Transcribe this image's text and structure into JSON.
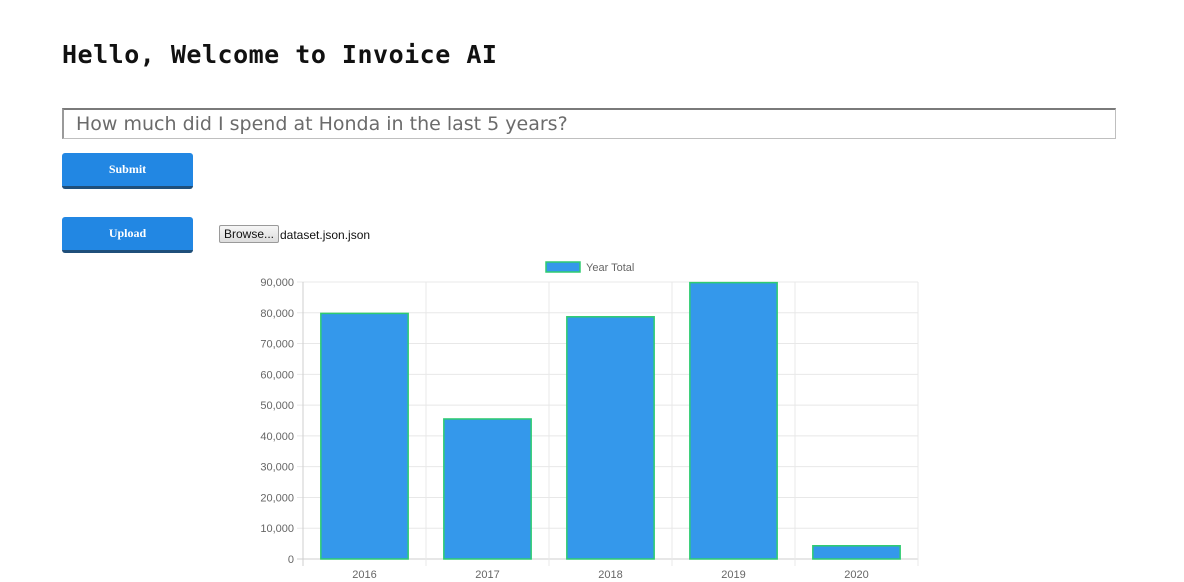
{
  "header": {
    "title": "Hello, Welcome to Invoice AI"
  },
  "query": {
    "placeholder": "How much did I spend at Honda in the last 5 years?",
    "value": ""
  },
  "actions": {
    "submit_label": "Submit",
    "upload_label": "Upload"
  },
  "file": {
    "browse_label": "Browse...",
    "selected_file": "dataset.json.json"
  },
  "colors": {
    "button": "#2287e3",
    "bar_fill": "#3498eb",
    "bar_border": "#2ecc71"
  },
  "chart_data": {
    "type": "bar",
    "categories": [
      "2016",
      "2017",
      "2018",
      "2019",
      "2020"
    ],
    "series": [
      {
        "name": "Year Total",
        "values": [
          79800,
          45500,
          78700,
          89800,
          4300
        ]
      }
    ],
    "ylim": [
      0,
      90000
    ],
    "yticks": [
      0,
      10000,
      20000,
      30000,
      40000,
      50000,
      60000,
      70000,
      80000,
      90000
    ],
    "ytick_labels": [
      "0",
      "10,000",
      "20,000",
      "30,000",
      "40,000",
      "50,000",
      "60,000",
      "70,000",
      "80,000",
      "90,000"
    ],
    "grid": true,
    "legend": "top-center",
    "title": "",
    "xlabel": "",
    "ylabel": ""
  }
}
